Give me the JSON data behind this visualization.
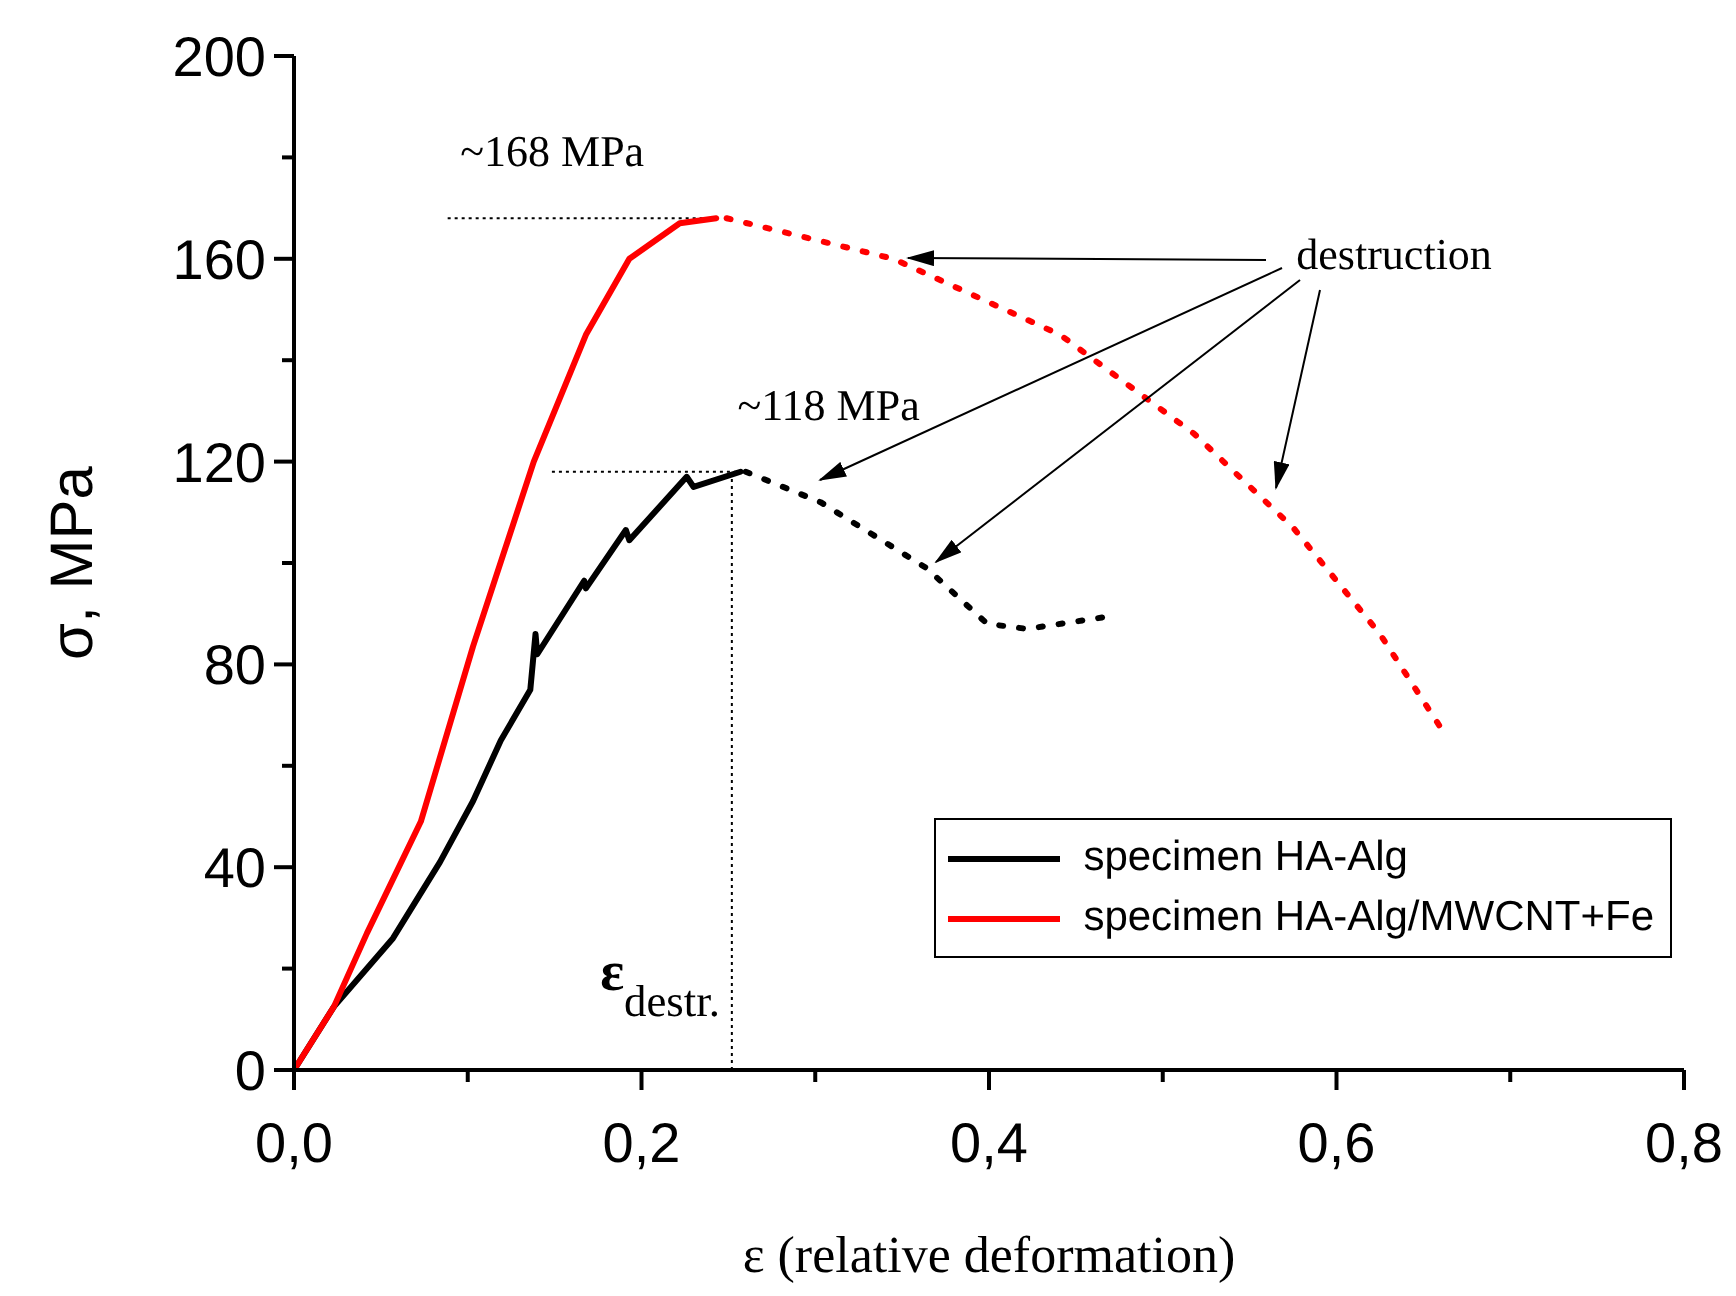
{
  "chart_data": {
    "type": "line",
    "xlabel": "ε (relative deformation)",
    "ylabel": "σ, MPa",
    "xlim": [
      0,
      0.8
    ],
    "ylim": [
      0,
      200
    ],
    "xticks": [
      {
        "value": 0,
        "label": "0,0"
      },
      {
        "value": 0.1,
        "label": null
      },
      {
        "value": 0.2,
        "label": "0,2"
      },
      {
        "value": 0.3,
        "label": null
      },
      {
        "value": 0.4,
        "label": "0,4"
      },
      {
        "value": 0.5,
        "label": null
      },
      {
        "value": 0.6,
        "label": "0,6"
      },
      {
        "value": 0.7,
        "label": null
      },
      {
        "value": 0.8,
        "label": "0,8"
      }
    ],
    "yticks": [
      0,
      {
        "value": 20,
        "label": null
      },
      40,
      {
        "value": 60,
        "label": null
      },
      80,
      {
        "value": 100,
        "label": null
      },
      120,
      {
        "value": 140,
        "label": null
      },
      160,
      {
        "value": 180,
        "label": null
      },
      200
    ],
    "series": [
      {
        "name": "specimen HA-Alg",
        "color": "#000000",
        "line_style": "solid",
        "x": [
          0,
          0.023,
          0.057,
          0.084,
          0.103,
          0.119,
          0.136,
          0.139,
          0.14,
          0.167,
          0.168,
          0.191,
          0.193,
          0.226,
          0.23,
          0.257
        ],
        "values": [
          0,
          12.5,
          26,
          41,
          53,
          65,
          75,
          86,
          82,
          96.5,
          95,
          106.5,
          104.5,
          117,
          115,
          118
        ]
      },
      {
        "color": "#000000",
        "line_style": "dotted",
        "x": [
          0.26,
          0.303,
          0.364,
          0.399,
          0.422,
          0.47
        ],
        "values": [
          118,
          112,
          99,
          88,
          87,
          89.5
        ]
      },
      {
        "name": "specimen HA-Alg/MWCNT+Fe",
        "color": "#ff0000",
        "line_style": "solid",
        "x": [
          0,
          0.023,
          0.042,
          0.073,
          0.103,
          0.138,
          0.168,
          0.193,
          0.222,
          0.243
        ],
        "values": [
          0,
          12.5,
          27,
          49,
          83.5,
          120,
          145,
          160,
          167,
          168
        ]
      },
      {
        "color": "#ff0000",
        "line_style": "dotted",
        "x": [
          0.249,
          0.345,
          0.441,
          0.518,
          0.575,
          0.625,
          0.66
        ],
        "values": [
          168,
          160,
          145,
          125.5,
          107,
          86,
          67.5
        ]
      }
    ],
    "ref_lines": [
      {
        "axis": "y",
        "value": 168,
        "color": "#000000",
        "line_style": "dotted"
      },
      {
        "axis": "y",
        "value": 118,
        "color": "#000000",
        "line_style": "dotted"
      },
      {
        "axis": "x",
        "value": 0.252,
        "label": "ε$_{destr.}$",
        "color": "#000000",
        "line_style": "dotted"
      }
    ],
    "annotations": [
      {
        "text": "~168 MPa",
        "x": 0.243,
        "y": 168
      },
      {
        "text": "~118 MPa",
        "x": 0.257,
        "y": 118
      },
      {
        "text": "destruction",
        "x": 0.35,
        "y": 160
      }
    ],
    "legend": "bottom right"
  }
}
